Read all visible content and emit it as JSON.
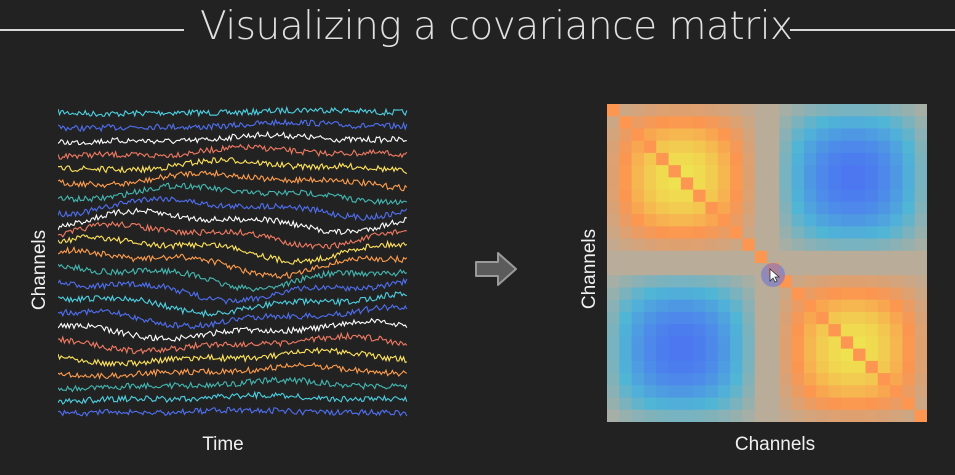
{
  "title": "Visualizing a covariance matrix",
  "left_panel": {
    "y_label": "Channels",
    "x_label": "Time"
  },
  "right_panel": {
    "y_label": "Channels",
    "x_label": "Channels"
  },
  "colors": {
    "background": "#222222",
    "channel_palette": [
      "#4dd0e1",
      "#4f6ff0",
      "#ffffff",
      "#f07a62",
      "#ffe45c",
      "#ff9d4d",
      "#44b7b0"
    ],
    "matrix_positive": "#f0e35a",
    "matrix_negative": "#4a78f2",
    "matrix_neutral": "#b9ad9a"
  },
  "icons": [
    "arrow-right-icon",
    "mouse-cursor-icon"
  ]
}
